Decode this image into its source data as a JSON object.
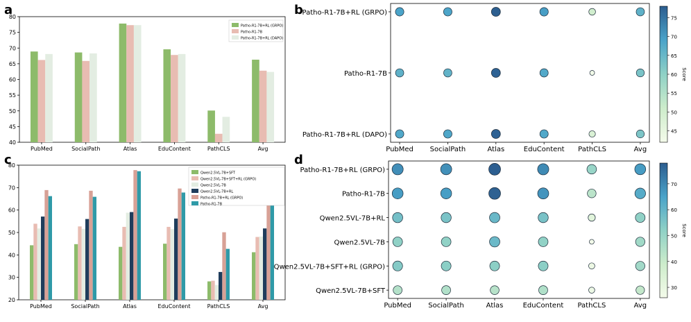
{
  "chart_data": [
    {
      "panel": "a",
      "type": "bar",
      "categories": [
        "PubMed",
        "SocialPath",
        "Atlas",
        "EduContent",
        "PathCLS",
        "Avg"
      ],
      "ylim": [
        40,
        80
      ],
      "yticks": [
        40,
        45,
        50,
        55,
        60,
        65,
        70,
        75,
        80
      ],
      "legend": "top-right",
      "series": [
        {
          "name": "Patho-R1-7B+RL (GRPO)",
          "color": "#8dbb6a",
          "values": [
            68.9,
            68.6,
            77.8,
            69.6,
            50.1,
            66.3
          ]
        },
        {
          "name": "Patho-R1-7B",
          "color": "#e8bcb2",
          "values": [
            66.2,
            65.9,
            77.3,
            67.8,
            42.7,
            62.8
          ]
        },
        {
          "name": "Patho-R1-7B+RL (DAPO)",
          "color": "#e3ede2",
          "values": [
            68.1,
            68.3,
            77.3,
            68.1,
            48.1,
            62.4
          ]
        }
      ]
    },
    {
      "panel": "b",
      "type": "scatter",
      "categories": [
        "PubMed",
        "SocialPath",
        "Atlas",
        "EduContent",
        "PathCLS",
        "Avg"
      ],
      "rows": [
        "Patho-R1-7B+RL (GRPO)",
        "Patho-R1-7B",
        "Patho-R1-7B+RL (DAPO)"
      ],
      "values": [
        [
          68.9,
          68.6,
          77.8,
          69.6,
          50.1,
          66.3
        ],
        [
          66.2,
          65.9,
          77.3,
          67.8,
          42.7,
          62.8
        ],
        [
          68.1,
          68.3,
          77.3,
          68.1,
          48.1,
          62.4
        ]
      ],
      "colorbar_label": "Score",
      "colorbar_range": [
        42,
        78
      ],
      "colorbar_ticks": [
        45,
        50,
        55,
        60,
        65,
        70,
        75
      ]
    },
    {
      "panel": "c",
      "type": "bar",
      "categories": [
        "PubMed",
        "SocialPath",
        "Atlas",
        "EduContent",
        "PathCLS",
        "Avg"
      ],
      "ylim": [
        20,
        80
      ],
      "yticks": [
        20,
        30,
        40,
        50,
        60,
        70,
        80
      ],
      "legend": "top-right",
      "series": [
        {
          "name": "Qwen2.5VL-7B+SFT",
          "color": "#8dbb6a",
          "values": [
            44.3,
            44.8,
            43.6,
            45.0,
            28.2,
            41.2
          ]
        },
        {
          "name": "Qwen2.5VL-7B+SFT+RL (GRPO)",
          "color": "#e8bcb2",
          "values": [
            53.9,
            52.7,
            52.5,
            52.5,
            28.5,
            48.0
          ]
        },
        {
          "name": "Qwen2.5VL-7B",
          "color": "#e3ede2",
          "values": [
            51.8,
            51.6,
            58.8,
            51.5,
            26.6,
            48.2
          ]
        },
        {
          "name": "Qwen2.5VL-7B+RL",
          "color": "#1f3d5c",
          "values": [
            57.1,
            56.0,
            59.1,
            56.2,
            32.4,
            51.8
          ]
        },
        {
          "name": "Patho-R1-7B+RL (GRPO)",
          "color": "#d8a196",
          "values": [
            68.9,
            68.6,
            77.8,
            69.6,
            50.1,
            66.3
          ]
        },
        {
          "name": "Patho-R1-7B",
          "color": "#2f9aa8",
          "values": [
            66.2,
            65.9,
            77.3,
            67.8,
            42.7,
            62.8
          ]
        }
      ]
    },
    {
      "panel": "d",
      "type": "scatter",
      "categories": [
        "PubMed",
        "SocialPath",
        "Atlas",
        "EduContent",
        "PathCLS",
        "Avg"
      ],
      "rows": [
        "Patho-R1-7B+RL (GRPO)",
        "Patho-R1-7B",
        "Qwen2.5VL-7B+RL",
        "Qwen2.5VL-7B",
        "Qwen2.5VL-7B+SFT+RL (GRPO)",
        "Qwen2.5VL-7B+SFT"
      ],
      "values": [
        [
          68.9,
          68.6,
          77.8,
          69.6,
          50.1,
          66.3
        ],
        [
          66.2,
          65.9,
          77.3,
          67.8,
          42.7,
          62.8
        ],
        [
          57.1,
          56.0,
          59.1,
          56.2,
          32.4,
          51.8
        ],
        [
          51.8,
          51.6,
          58.8,
          51.5,
          26.6,
          48.2
        ],
        [
          53.9,
          52.7,
          52.5,
          52.5,
          28.5,
          48.0
        ],
        [
          44.3,
          44.8,
          43.6,
          45.0,
          28.2,
          41.2
        ]
      ],
      "colorbar_label": "Score",
      "colorbar_range": [
        26,
        78
      ],
      "colorbar_ticks": [
        30,
        40,
        50,
        60,
        70
      ]
    }
  ],
  "panel_labels": [
    "a",
    "b",
    "c",
    "d"
  ]
}
